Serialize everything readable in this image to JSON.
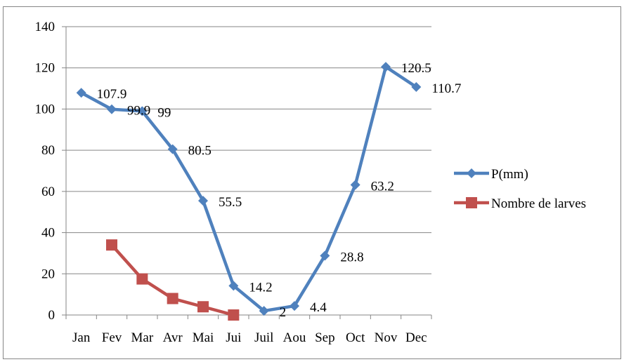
{
  "chart_data": {
    "type": "line",
    "categories": [
      "Jan",
      "Fev",
      "Mar",
      "Avr",
      "Mai",
      "Jui",
      "Juil",
      "Aou",
      "Sep",
      "Oct",
      "Nov",
      "Dec"
    ],
    "ylim": [
      0,
      140
    ],
    "yticks": [
      0,
      20,
      40,
      60,
      80,
      100,
      120,
      140
    ],
    "grid": true,
    "legend_position": "right",
    "series": [
      {
        "name": "P(mm)",
        "color": "#4F81BD",
        "marker": "diamond",
        "values": [
          107.9,
          99.9,
          99,
          80.5,
          55.5,
          14.2,
          2,
          4.4,
          28.8,
          63.2,
          120.5,
          110.7
        ],
        "labels": [
          "107.9",
          "99.9",
          "99",
          "80.5",
          "55.5",
          "14.2",
          "2",
          "4.4",
          "28.8",
          "63.2",
          "120.5",
          "110.7"
        ]
      },
      {
        "name": "Nombre de larves",
        "color": "#C0504D",
        "marker": "square",
        "values": [
          null,
          34,
          17.5,
          8,
          4,
          0,
          null,
          null,
          null,
          null,
          null,
          null
        ]
      }
    ]
  }
}
